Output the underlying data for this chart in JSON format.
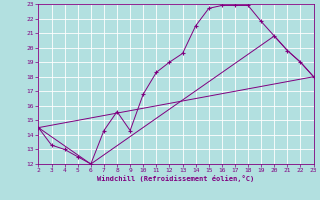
{
  "xlabel": "Windchill (Refroidissement éolien,°C)",
  "bg_color": "#b2e0e0",
  "grid_color": "#ffffff",
  "line_color": "#800080",
  "xlim": [
    2,
    23
  ],
  "ylim": [
    12,
    23
  ],
  "xticks": [
    2,
    3,
    4,
    5,
    6,
    7,
    8,
    9,
    10,
    11,
    12,
    13,
    14,
    15,
    16,
    17,
    18,
    19,
    20,
    21,
    22,
    23
  ],
  "yticks": [
    12,
    13,
    14,
    15,
    16,
    17,
    18,
    19,
    20,
    21,
    22,
    23
  ],
  "line1_x": [
    2,
    3,
    4,
    5,
    6,
    7,
    8,
    9,
    10,
    11,
    12,
    13,
    14,
    15,
    16,
    17,
    18,
    19,
    20,
    21,
    22,
    23
  ],
  "line1_y": [
    14.5,
    13.3,
    13.0,
    12.5,
    12.0,
    14.3,
    15.6,
    14.3,
    16.8,
    18.3,
    19.0,
    19.6,
    21.5,
    22.7,
    22.9,
    22.9,
    22.9,
    21.8,
    20.8,
    19.8,
    19.0,
    18.0
  ],
  "line2_x": [
    2,
    23
  ],
  "line2_y": [
    14.5,
    18.0
  ],
  "line3_x": [
    2,
    6,
    20,
    21,
    22,
    23
  ],
  "line3_y": [
    14.5,
    12.0,
    20.8,
    19.8,
    19.0,
    18.0
  ]
}
